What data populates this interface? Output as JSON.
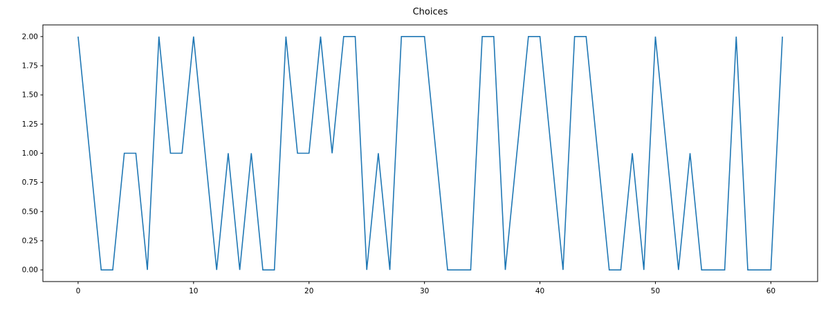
{
  "chart_data": {
    "type": "line",
    "title": "Choices",
    "xlabel": "",
    "ylabel": "",
    "x": [
      0,
      1,
      2,
      3,
      4,
      5,
      6,
      7,
      8,
      9,
      10,
      11,
      12,
      13,
      14,
      15,
      16,
      17,
      18,
      19,
      20,
      21,
      22,
      23,
      24,
      25,
      26,
      27,
      28,
      29,
      30,
      31,
      32,
      33,
      34,
      35,
      36,
      37,
      38,
      39,
      40,
      41,
      42,
      43,
      44,
      45,
      46,
      47,
      48,
      49,
      50,
      51,
      52,
      53,
      54,
      55,
      56,
      57,
      58,
      59,
      60,
      61
    ],
    "values": [
      2,
      1,
      0,
      0,
      1,
      1,
      0,
      2,
      1,
      1,
      2,
      1,
      0,
      1,
      0,
      1,
      0,
      0,
      2,
      1,
      1,
      2,
      1,
      2,
      2,
      0,
      1,
      0,
      2,
      2,
      2,
      1,
      0,
      0,
      0,
      2,
      2,
      0,
      1,
      2,
      2,
      1,
      0,
      2,
      2,
      1,
      0,
      0,
      1,
      0,
      2,
      1,
      0,
      1,
      0,
      0,
      0,
      2,
      0,
      0,
      0,
      2
    ],
    "xlim": [
      -3.05,
      64.05
    ],
    "ylim": [
      -0.1,
      2.1
    ],
    "x_ticks": [
      {
        "v": 0,
        "label": "0"
      },
      {
        "v": 10,
        "label": "10"
      },
      {
        "v": 20,
        "label": "20"
      },
      {
        "v": 30,
        "label": "30"
      },
      {
        "v": 40,
        "label": "40"
      },
      {
        "v": 50,
        "label": "50"
      },
      {
        "v": 60,
        "label": "60"
      }
    ],
    "y_ticks": [
      {
        "v": 0.0,
        "label": "0.00"
      },
      {
        "v": 0.25,
        "label": "0.25"
      },
      {
        "v": 0.5,
        "label": "0.50"
      },
      {
        "v": 0.75,
        "label": "0.75"
      },
      {
        "v": 1.0,
        "label": "1.00"
      },
      {
        "v": 1.25,
        "label": "1.25"
      },
      {
        "v": 1.5,
        "label": "1.50"
      },
      {
        "v": 1.75,
        "label": "1.75"
      },
      {
        "v": 2.0,
        "label": "2.00"
      }
    ],
    "line_color": "#1f77b4",
    "spine_color": "#000000",
    "grid": false,
    "legend_position": "none"
  }
}
